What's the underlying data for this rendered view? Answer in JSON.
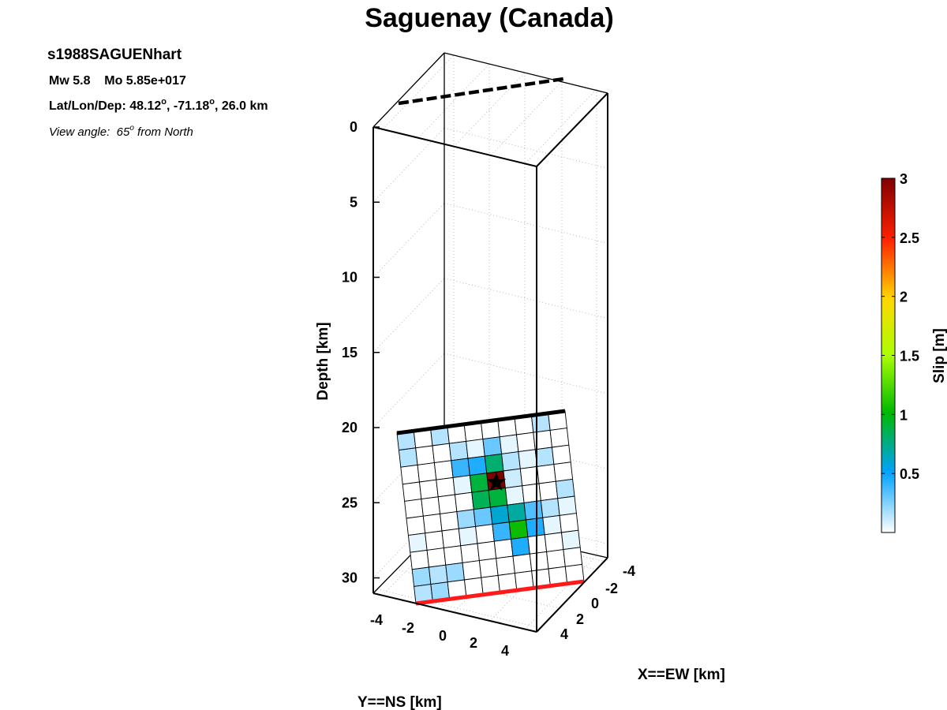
{
  "figure": {
    "title": "Saguenay (Canada)",
    "event_id": "s1988SAGUENhart",
    "magnitude_line": "Mw 5.8    Mo 5.85e+017",
    "location_line_prefix": "Lat/Lon/Dep: 48.12",
    "location_line_mid": ", -71.18",
    "location_line_suffix": ", 26.0 km",
    "degree_symbol": "o",
    "view_line_prefix": "View angle:  65",
    "view_line_suffix": " from North"
  },
  "chart_data": {
    "type": "heatmap",
    "title": "Saguenay (Canada)",
    "zlabel": "Depth [km]",
    "xlabel": "X==EW [km]",
    "ylabel": "Y==NS [km]",
    "zlim": [
      0,
      31
    ],
    "z_ticks": [
      "0",
      "5",
      "10",
      "15",
      "20",
      "25",
      "30"
    ],
    "z_tick_values": [
      0,
      5,
      10,
      15,
      20,
      25,
      30
    ],
    "x_ticks": [
      "-4",
      "-2",
      "0",
      "2",
      "4"
    ],
    "y_ticks": [
      "-4",
      "-2",
      "0",
      "2",
      "4"
    ],
    "view_angle_from_north": 65,
    "grid": true,
    "fault_top_depth_km": 20.2,
    "fault_bottom_depth_km": 30.9,
    "slip_grid_m": [
      [
        0.15,
        0.0,
        0.15,
        0.0,
        0.0,
        0.0,
        0.0,
        0.0,
        0.15,
        0.0
      ],
      [
        0.15,
        0.0,
        0.0,
        0.15,
        0.05,
        0.3,
        0.05,
        0.0,
        0.0,
        0.0
      ],
      [
        0.0,
        0.0,
        0.0,
        0.4,
        0.45,
        0.8,
        0.15,
        0.05,
        0.15,
        0.0
      ],
      [
        0.0,
        0.0,
        0.0,
        0.05,
        0.9,
        3.0,
        0.1,
        0.0,
        0.0,
        0.0
      ],
      [
        0.0,
        0.0,
        0.0,
        0.0,
        0.85,
        0.9,
        0.05,
        0.0,
        0.0,
        0.15
      ],
      [
        0.0,
        0.0,
        0.0,
        0.2,
        0.3,
        0.6,
        0.7,
        0.35,
        0.15,
        0.05
      ],
      [
        0.05,
        0.0,
        0.0,
        0.05,
        0.0,
        0.4,
        1.05,
        0.45,
        0.05,
        0.0
      ],
      [
        0.0,
        0.0,
        0.0,
        0.0,
        0.0,
        0.0,
        0.45,
        0.0,
        0.0,
        0.05
      ],
      [
        0.2,
        0.15,
        0.2,
        0.0,
        0.0,
        0.0,
        0.0,
        0.0,
        0.0,
        0.0
      ],
      [
        0.15,
        0.2,
        0.0,
        0.0,
        0.0,
        0.0,
        0.0,
        0.0,
        0.0,
        0.0
      ]
    ],
    "hypocenter": {
      "row": 3.6,
      "col": 5.5
    },
    "colorbar": {
      "label": "Slip [m]",
      "lim": [
        0,
        3
      ],
      "ticks": [
        "0.5",
        "1",
        "1.5",
        "2",
        "2.5",
        "3"
      ],
      "tick_values": [
        0.5,
        1,
        1.5,
        2,
        2.5,
        3
      ]
    }
  }
}
